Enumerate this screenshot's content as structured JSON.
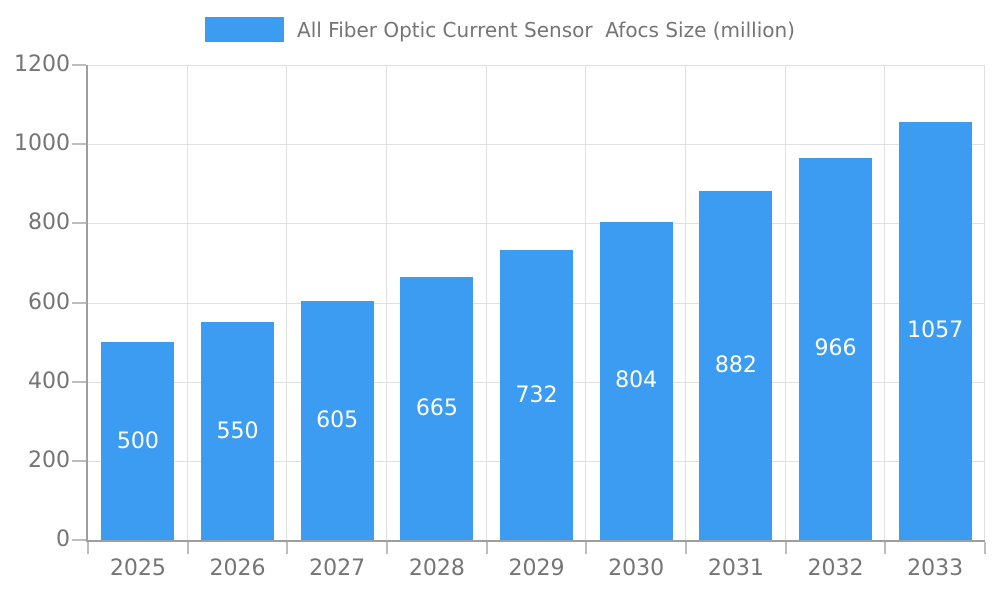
{
  "legend": {
    "label": "All Fiber Optic Current Sensor  Afocs Size (million)"
  },
  "chart_data": {
    "type": "bar",
    "title": "All Fiber Optic Current Sensor  Afocs Size (million)",
    "categories": [
      "2025",
      "2026",
      "2027",
      "2028",
      "2029",
      "2030",
      "2031",
      "2032",
      "2033"
    ],
    "values": [
      500,
      550,
      605,
      665,
      732,
      804,
      882,
      966,
      1057
    ],
    "xlabel": "",
    "ylabel": "",
    "ylim": [
      0,
      1200
    ],
    "yticks": [
      0,
      200,
      400,
      600,
      800,
      1000,
      1200
    ],
    "grid": true,
    "legend_position": "top-center",
    "value_labels": "inside-center",
    "colors": {
      "bar": "#3b9cf2",
      "value_label": "#ffffff",
      "axis_text": "#757575",
      "gridline": "#e0e0e0",
      "tick": "#bdbdbd",
      "axis_line": "#9e9e9e",
      "background": "#ffffff"
    }
  }
}
